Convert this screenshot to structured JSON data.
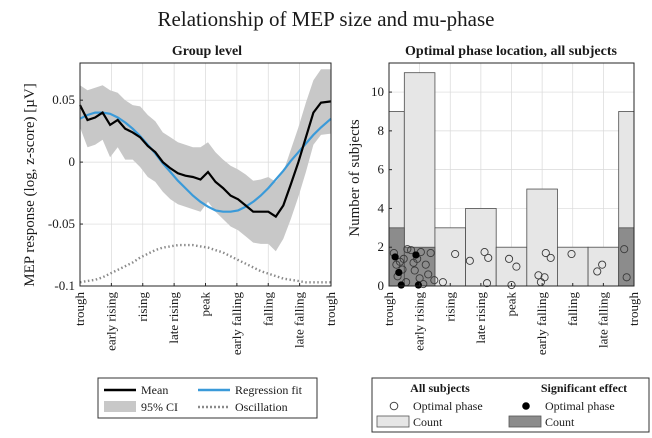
{
  "figure_title": "Relationship of MEP size and mu-phase",
  "colors": {
    "mean": "#000000",
    "fit": "#3a9ad9",
    "ci": "#c8c8c8",
    "oscillation": "#8a8a8a",
    "all_subjects_bar": "#e6e6e6",
    "significant_bar": "#8c8c8c",
    "grid": "#d9d9d9"
  },
  "chart_data": [
    {
      "type": "line",
      "title": "Group level",
      "ylabel": "MEP response (log, z-score) [µV]",
      "xlabel": "",
      "xlim": [
        0,
        1
      ],
      "ylim": [
        -0.1,
        0.08
      ],
      "yticks": [
        -0.1,
        -0.05,
        0,
        0.05
      ],
      "ytick_labels": [
        "-0.1",
        "-0.05",
        "0",
        "0.05"
      ],
      "categories": [
        "trough",
        "early rising",
        "rising",
        "late rising",
        "peak",
        "early falling",
        "falling",
        "late falling",
        "trough"
      ],
      "grid": true,
      "x": [
        0,
        0.03,
        0.06,
        0.09,
        0.12,
        0.15,
        0.18,
        0.21,
        0.24,
        0.27,
        0.3,
        0.33,
        0.36,
        0.39,
        0.42,
        0.45,
        0.48,
        0.51,
        0.54,
        0.57,
        0.6,
        0.63,
        0.66,
        0.69,
        0.72,
        0.75,
        0.78,
        0.81,
        0.84,
        0.87,
        0.9,
        0.93,
        0.96,
        1.0
      ],
      "series": [
        {
          "name": "Mean",
          "values": [
            0.046,
            0.034,
            0.036,
            0.04,
            0.03,
            0.034,
            0.027,
            0.024,
            0.02,
            0.013,
            0.008,
            0.0,
            -0.005,
            -0.009,
            -0.011,
            -0.012,
            -0.014,
            -0.008,
            -0.016,
            -0.021,
            -0.027,
            -0.03,
            -0.035,
            -0.04,
            -0.04,
            -0.04,
            -0.044,
            -0.035,
            -0.018,
            0.0,
            0.02,
            0.04,
            0.048,
            0.049
          ]
        },
        {
          "name": "Regression fit",
          "values": [
            0.035,
            0.038,
            0.04,
            0.04,
            0.039,
            0.036,
            0.032,
            0.027,
            0.021,
            0.014,
            0.007,
            -0.001,
            -0.008,
            -0.015,
            -0.021,
            -0.027,
            -0.032,
            -0.036,
            -0.039,
            -0.04,
            -0.04,
            -0.039,
            -0.036,
            -0.032,
            -0.027,
            -0.021,
            -0.014,
            -0.007,
            0.001,
            0.008,
            0.015,
            0.022,
            0.028,
            0.035
          ]
        },
        {
          "name": "95% CI",
          "values_upper": [
            0.062,
            0.058,
            0.06,
            0.062,
            0.058,
            0.056,
            0.05,
            0.046,
            0.045,
            0.038,
            0.033,
            0.024,
            0.02,
            0.016,
            0.014,
            0.012,
            0.012,
            0.016,
            0.008,
            0.002,
            -0.003,
            -0.006,
            -0.01,
            -0.015,
            -0.014,
            -0.012,
            -0.016,
            -0.008,
            0.01,
            0.028,
            0.048,
            0.066,
            0.075,
            0.075
          ],
          "values_lower": [
            0.028,
            0.012,
            0.014,
            0.018,
            0.004,
            0.012,
            0.002,
            0.002,
            -0.004,
            -0.012,
            -0.016,
            -0.024,
            -0.03,
            -0.034,
            -0.036,
            -0.038,
            -0.04,
            -0.032,
            -0.04,
            -0.046,
            -0.052,
            -0.055,
            -0.06,
            -0.065,
            -0.066,
            -0.066,
            -0.072,
            -0.062,
            -0.046,
            -0.028,
            -0.008,
            0.014,
            0.022,
            0.023
          ]
        },
        {
          "name": "Oscillation",
          "values": [
            -0.097,
            -0.096,
            -0.095,
            -0.093,
            -0.09,
            -0.087,
            -0.084,
            -0.081,
            -0.077,
            -0.074,
            -0.071,
            -0.069,
            -0.068,
            -0.067,
            -0.067,
            -0.067,
            -0.068,
            -0.069,
            -0.071,
            -0.073,
            -0.076,
            -0.079,
            -0.082,
            -0.085,
            -0.088,
            -0.09,
            -0.092,
            -0.094,
            -0.095,
            -0.096,
            -0.097,
            -0.097,
            -0.097,
            -0.097
          ]
        }
      ]
    },
    {
      "type": "bar",
      "title": "Optimal phase location, all subjects",
      "ylabel": "Number of subjects",
      "xlabel": "",
      "ylim": [
        0,
        11.5
      ],
      "yticks": [
        0,
        2,
        4,
        6,
        8,
        10
      ],
      "categories": [
        "trough",
        "early rising",
        "rising",
        "late rising",
        "peak",
        "early falling",
        "falling",
        "late falling",
        "trough"
      ],
      "grid": true,
      "bin_edges": [
        0,
        0.0625,
        0.1875,
        0.3125,
        0.4375,
        0.5625,
        0.6875,
        0.8125,
        0.9375,
        1.0
      ],
      "series": [
        {
          "name": "Count",
          "group": "All subjects",
          "values": [
            9,
            11,
            3,
            4,
            2,
            5,
            2,
            2,
            9
          ]
        },
        {
          "name": "Count",
          "group": "Significant effect",
          "values": [
            3,
            2,
            0,
            0,
            0,
            0,
            0,
            0,
            3
          ]
        }
      ],
      "scatter": [
        {
          "name": "Optimal phase",
          "group": "All subjects",
          "points": [
            {
              "x": 0.02,
              "y": 1.7
            },
            {
              "x": 0.03,
              "y": 1.1
            },
            {
              "x": 0.035,
              "y": 0.5
            },
            {
              "x": 0.045,
              "y": 1.25
            },
            {
              "x": 0.055,
              "y": 0.85
            },
            {
              "x": 0.06,
              "y": 1.4
            },
            {
              "x": 0.07,
              "y": 0.2
            },
            {
              "x": 0.075,
              "y": 1.9
            },
            {
              "x": 0.09,
              "y": 1.85
            },
            {
              "x": 0.1,
              "y": 1.2
            },
            {
              "x": 0.105,
              "y": 0.8
            },
            {
              "x": 0.115,
              "y": 1.4
            },
            {
              "x": 0.125,
              "y": 0.4
            },
            {
              "x": 0.13,
              "y": 1.75
            },
            {
              "x": 0.14,
              "y": 0.1
            },
            {
              "x": 0.15,
              "y": 1.1
            },
            {
              "x": 0.16,
              "y": 0.6
            },
            {
              "x": 0.17,
              "y": 1.7
            },
            {
              "x": 0.185,
              "y": 0.3
            },
            {
              "x": 0.22,
              "y": 0.2
            },
            {
              "x": 0.27,
              "y": 1.65
            },
            {
              "x": 0.33,
              "y": 1.3
            },
            {
              "x": 0.39,
              "y": 1.75
            },
            {
              "x": 0.4,
              "y": 0.15
            },
            {
              "x": 0.405,
              "y": 1.45
            },
            {
              "x": 0.49,
              "y": 1.4
            },
            {
              "x": 0.5,
              "y": 0.05
            },
            {
              "x": 0.52,
              "y": 1.0
            },
            {
              "x": 0.61,
              "y": 0.55
            },
            {
              "x": 0.62,
              "y": 0.2
            },
            {
              "x": 0.635,
              "y": 0.45
            },
            {
              "x": 0.64,
              "y": 1.7
            },
            {
              "x": 0.66,
              "y": 1.45
            },
            {
              "x": 0.745,
              "y": 1.65
            },
            {
              "x": 0.85,
              "y": 0.75
            },
            {
              "x": 0.87,
              "y": 1.1
            },
            {
              "x": 0.96,
              "y": 1.9
            },
            {
              "x": 0.97,
              "y": 0.45
            }
          ]
        },
        {
          "name": "Optimal phase",
          "group": "Significant effect",
          "points": [
            {
              "x": 0.025,
              "y": 1.5
            },
            {
              "x": 0.04,
              "y": 0.7
            },
            {
              "x": 0.05,
              "y": 0.05
            },
            {
              "x": 0.11,
              "y": 1.6
            },
            {
              "x": 0.12,
              "y": 0.05
            }
          ]
        }
      ]
    }
  ],
  "legend_left": {
    "mean": "Mean",
    "fit": "Regression fit",
    "ci": "95% CI",
    "oscillation": "Oscillation"
  },
  "legend_right": {
    "all_header": "All subjects",
    "sig_header": "Significant effect",
    "phase_label": "Optimal phase",
    "phase_label_sig": "Optimal phase",
    "count_label": "Count",
    "count_label_sig": "Count"
  }
}
